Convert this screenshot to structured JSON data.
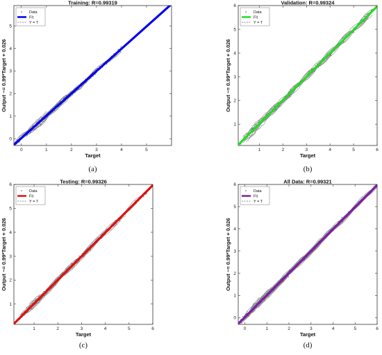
{
  "chart_data": [
    {
      "type": "scatter",
      "caption": "(a)",
      "title": "Training: R=0.99319",
      "xlabel": "Target",
      "ylabel": "Output ~= 0.99*Target + 0.026",
      "xlim": [
        -0.3,
        6.0
      ],
      "ylim": [
        -0.3,
        5.9
      ],
      "xticks": [
        0,
        1,
        2,
        3,
        4,
        5
      ],
      "yticks": [
        0,
        1,
        2,
        3,
        4,
        5
      ],
      "fit": {
        "slope": 0.99,
        "intercept": 0.026
      },
      "fit_color": "#0000ee",
      "fit_range": [
        -0.3,
        5.95
      ],
      "legend": [
        "Data",
        "Fit",
        "Y = T"
      ],
      "legend_position": "top-left",
      "data_range": [
        -0.25,
        4.0
      ]
    },
    {
      "type": "scatter",
      "caption": "(b)",
      "title": "Validation: R=0.99324",
      "xlabel": "Target",
      "ylabel": "Output ~= 0.99*Target + 0.026",
      "xlim": [
        0.1,
        6.0
      ],
      "ylim": [
        0.1,
        6.0
      ],
      "xticks": [
        1,
        2,
        3,
        4,
        5,
        6
      ],
      "yticks": [
        1,
        2,
        3,
        4,
        5,
        6
      ],
      "fit": {
        "slope": 0.99,
        "intercept": 0.026
      },
      "fit_color": "#22dd22",
      "fit_range": [
        0.1,
        6.0
      ],
      "legend": [
        "Data",
        "Fit",
        "Y = T"
      ],
      "legend_position": "top-left",
      "data_range": [
        0.2,
        5.8
      ]
    },
    {
      "type": "scatter",
      "caption": "(c)",
      "title": "Testing: R=0.99326",
      "xlabel": "Target",
      "ylabel": "Output ~= 0.99*Target + 0.026",
      "xlim": [
        0.15,
        6.0
      ],
      "ylim": [
        0.15,
        6.0
      ],
      "xticks": [
        1,
        2,
        3,
        4,
        5,
        6
      ],
      "yticks": [
        1,
        2,
        3,
        4,
        5,
        6
      ],
      "fit": {
        "slope": 0.99,
        "intercept": 0.026
      },
      "fit_color": "#dd1111",
      "fit_range": [
        0.15,
        6.0
      ],
      "legend": [
        "Data",
        "Fit",
        "Y = T"
      ],
      "legend_position": "top-left",
      "data_range": [
        0.3,
        5.8
      ]
    },
    {
      "type": "scatter",
      "caption": "(d)",
      "title": "All Data: R=0.99321",
      "xlabel": "Target",
      "ylabel": "Output ~= 0.99*Target + 0.026",
      "xlim": [
        -0.3,
        6.0
      ],
      "ylim": [
        -0.3,
        6.0
      ],
      "xticks": [
        0,
        1,
        2,
        3,
        4,
        5,
        6
      ],
      "yticks": [
        0,
        1,
        2,
        3,
        4,
        5,
        6
      ],
      "fit": {
        "slope": 0.99,
        "intercept": 0.026
      },
      "fit_color": "#7b1fa2",
      "fit_range": [
        -0.3,
        6.0
      ],
      "legend": [
        "Data",
        "Fit",
        "Y = T"
      ],
      "legend_position": "top-left",
      "data_range": [
        -0.25,
        6.0
      ]
    }
  ]
}
